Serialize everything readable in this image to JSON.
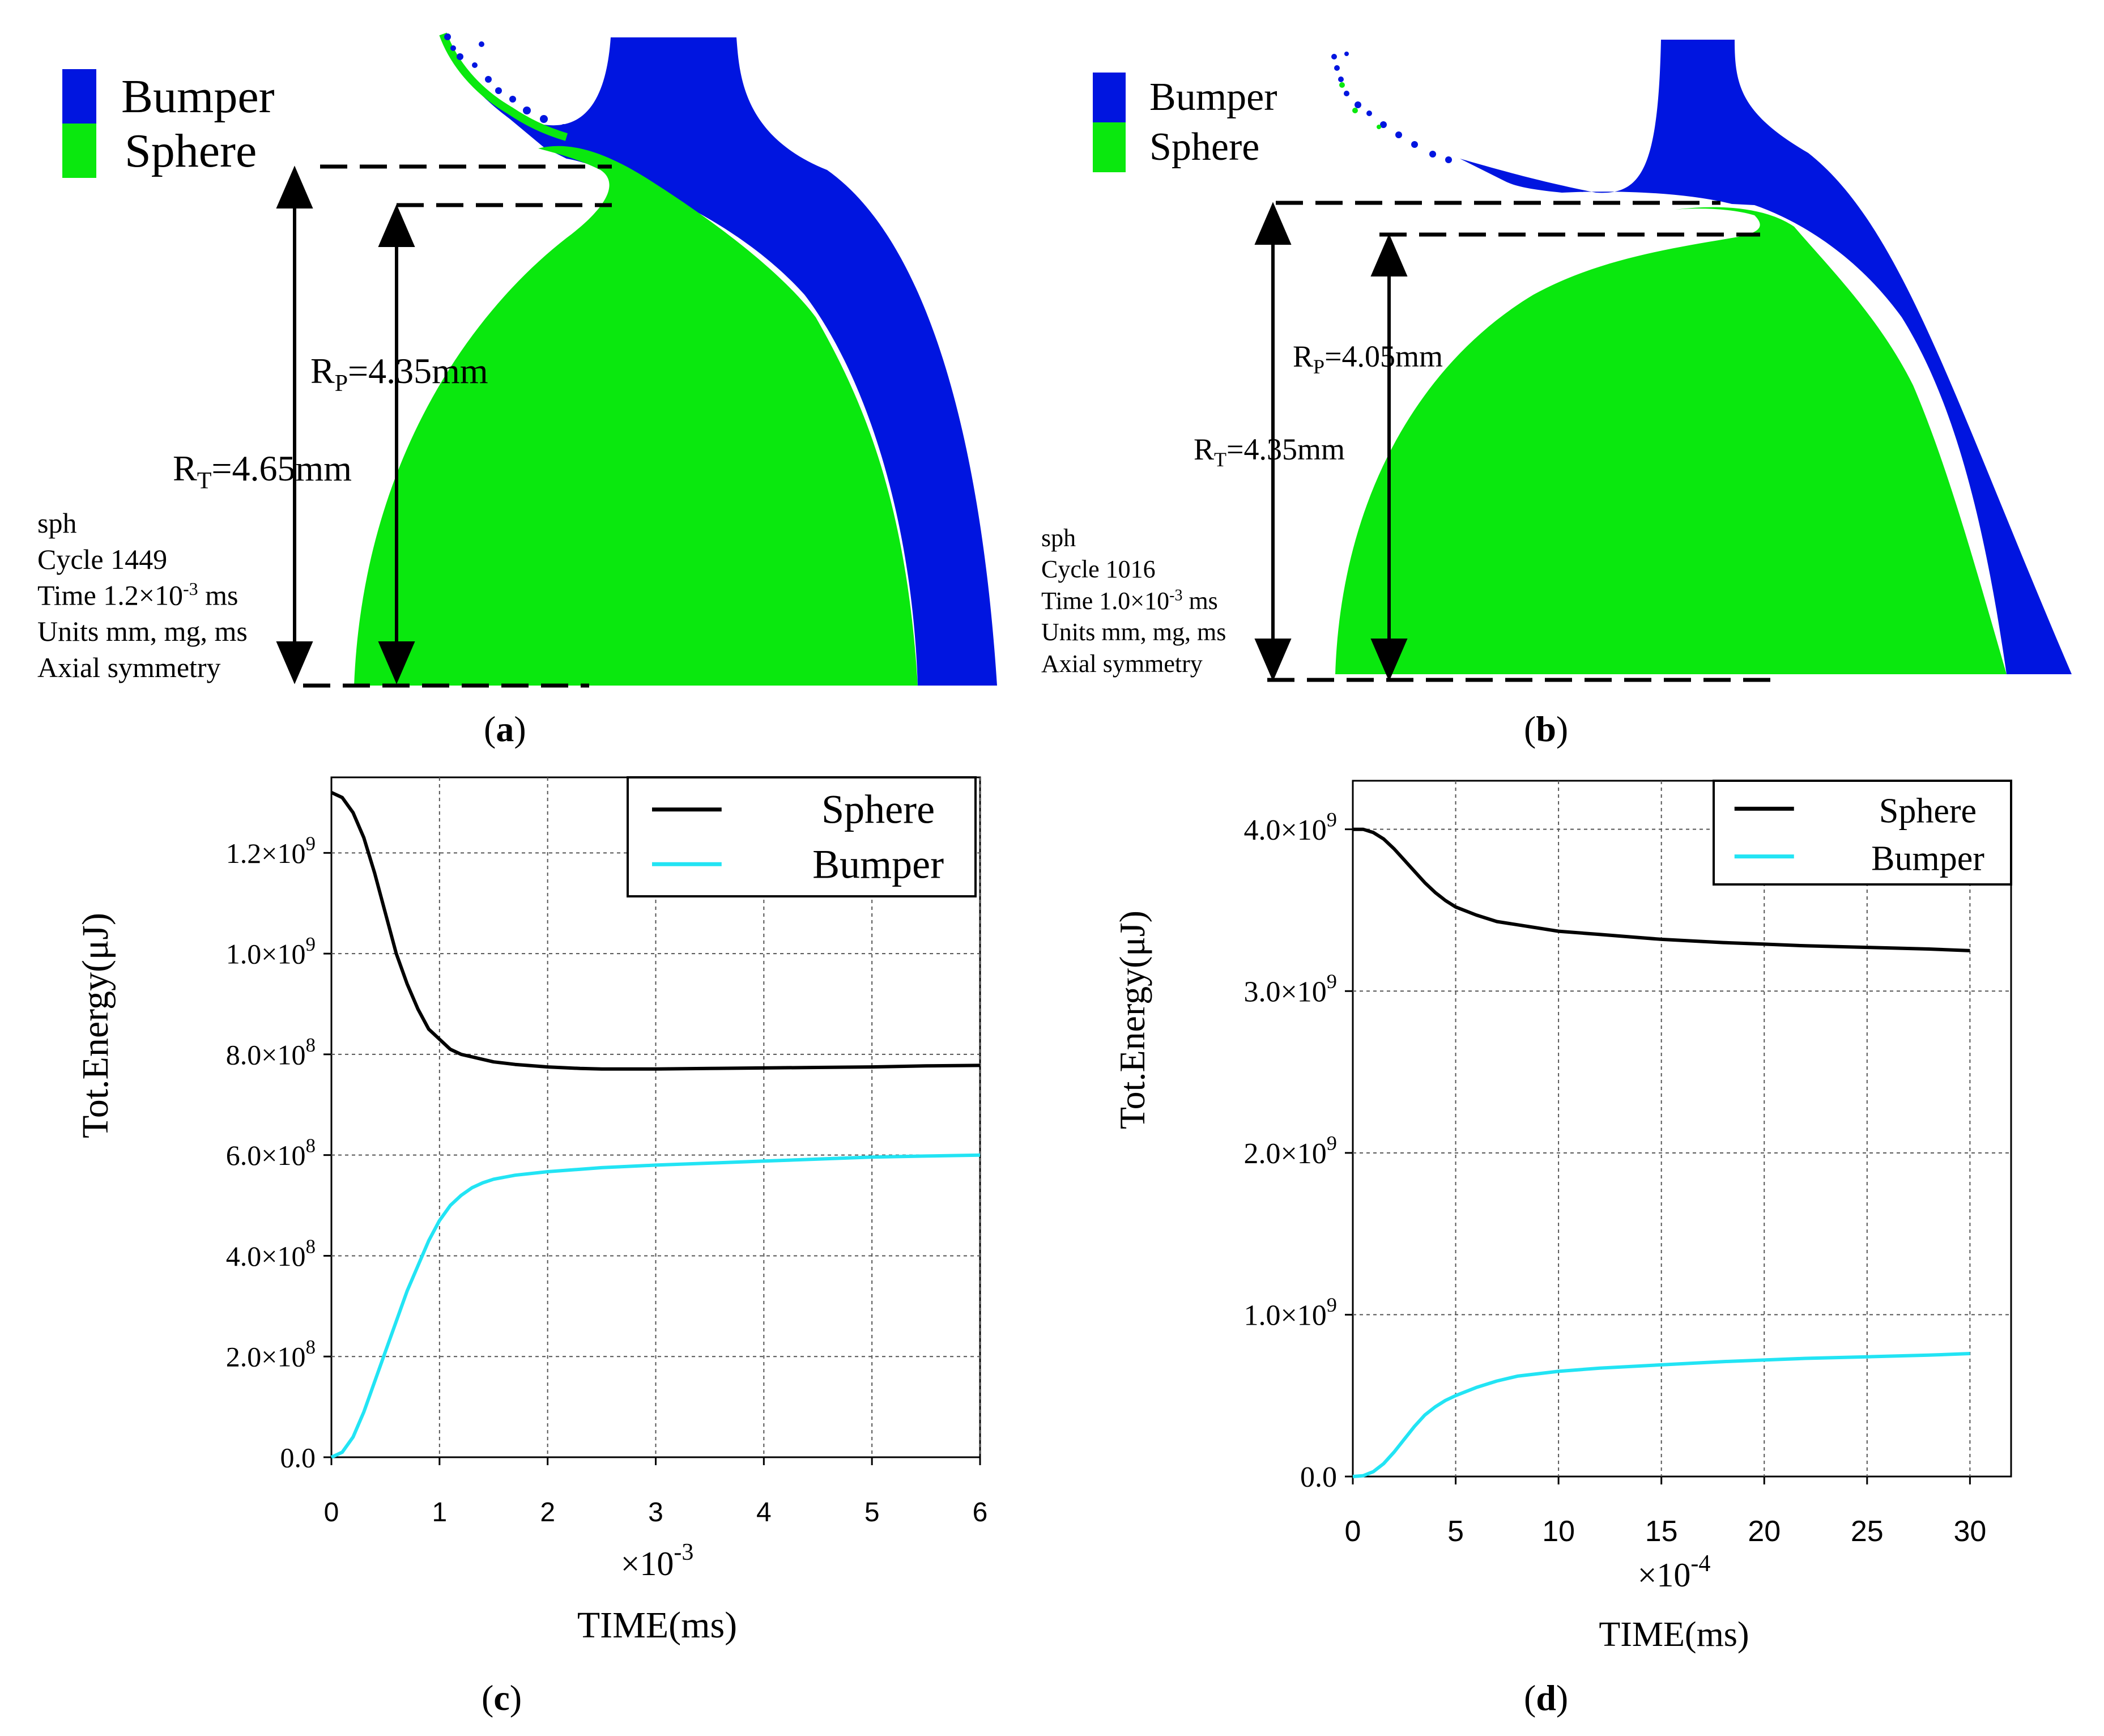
{
  "panel_a": {
    "legend": [
      {
        "label": "Bumper",
        "color": "#0015e0"
      },
      {
        "label": "Sphere",
        "color": "#0ae80e"
      }
    ],
    "rp_label": "R",
    "rp_sub": "P",
    "rp_value": "=4.35mm",
    "rt_label": "R",
    "rt_sub": "T",
    "rt_value": "=4.65mm",
    "info": {
      "line1": "sph",
      "line2": "Cycle 1449",
      "line3_pre": "Time 1.2×10",
      "line3_exp": "-3",
      "line3_post": " ms",
      "line4": "Units mm, mg, ms",
      "line5": "Axial symmetry"
    },
    "caption_letter": "a"
  },
  "panel_b": {
    "legend": [
      {
        "label": "Bumper",
        "color": "#0015e0"
      },
      {
        "label": "Sphere",
        "color": "#0ae80e"
      }
    ],
    "rp_label": "R",
    "rp_sub": "P",
    "rp_value": "=4.05mm",
    "rt_label": "R",
    "rt_sub": "T",
    "rt_value": "=4.35mm",
    "info": {
      "line1": "sph",
      "line2": "Cycle 1016",
      "line3_pre": "Time 1.0×10",
      "line3_exp": "-3",
      "line3_post": " ms",
      "line4": "Units mm, mg, ms",
      "line5": "Axial symmetry"
    },
    "caption_letter": "b"
  },
  "panel_c": {
    "caption_letter": "c"
  },
  "panel_d": {
    "caption_letter": "d"
  },
  "colors": {
    "sphere": "#000000",
    "bumper": "#22e4f4",
    "sim_bumper": "#0015e0",
    "sim_sphere": "#0ae80e"
  },
  "chart_data": [
    {
      "id": "c",
      "type": "line",
      "ylabel": "Tot.Energy(μJ)",
      "xlabel": "TIME(ms)",
      "x_multiplier_base": "×10",
      "x_multiplier_exp": "-3",
      "xlim": [
        0,
        6
      ],
      "ylim": [
        0,
        1350000000.0
      ],
      "x_ticks": [
        0,
        1,
        2,
        3,
        4,
        5,
        6
      ],
      "x_tick_labels": [
        "0",
        "1",
        "2",
        "3",
        "4",
        "5",
        "6"
      ],
      "y_ticks": [
        0,
        200000000.0,
        400000000.0,
        600000000.0,
        800000000.0,
        1000000000.0,
        1200000000.0
      ],
      "y_tick_labels": [
        {
          "base": "0.0",
          "exp": ""
        },
        {
          "base": "2.0×10",
          "exp": "8"
        },
        {
          "base": "4.0×10",
          "exp": "8"
        },
        {
          "base": "6.0×10",
          "exp": "8"
        },
        {
          "base": "8.0×10",
          "exp": "8"
        },
        {
          "base": "1.0×10",
          "exp": "9"
        },
        {
          "base": "1.2×10",
          "exp": "9"
        }
      ],
      "grid": true,
      "legend_position": "top-right",
      "series": [
        {
          "name": "Sphere",
          "color": "#000000",
          "x": [
            0,
            0.1,
            0.2,
            0.3,
            0.4,
            0.5,
            0.6,
            0.7,
            0.8,
            0.9,
            1.0,
            1.1,
            1.2,
            1.3,
            1.4,
            1.5,
            1.7,
            2.0,
            2.3,
            2.5,
            3.0,
            3.5,
            4.0,
            4.5,
            5.0,
            5.5,
            6.0
          ],
          "values": [
            1320000000.0,
            1310000000.0,
            1280000000.0,
            1230000000.0,
            1160000000.0,
            1080000000.0,
            1000000000.0,
            940000000.0,
            890000000.0,
            850000000.0,
            830000000.0,
            810000000.0,
            800000000.0,
            795000000.0,
            790000000.0,
            785000000.0,
            780000000.0,
            775000000.0,
            772000000.0,
            771000000.0,
            771000000.0,
            772000000.0,
            773000000.0,
            774000000.0,
            775000000.0,
            777000000.0,
            778000000.0
          ]
        },
        {
          "name": "Bumper",
          "color": "#22e4f4",
          "x": [
            0,
            0.1,
            0.2,
            0.3,
            0.4,
            0.5,
            0.6,
            0.7,
            0.8,
            0.9,
            1.0,
            1.1,
            1.2,
            1.3,
            1.4,
            1.5,
            1.7,
            2.0,
            2.5,
            3.0,
            3.5,
            4.0,
            4.5,
            5.0,
            5.5,
            6.0
          ],
          "values": [
            0,
            10000000.0,
            40000000.0,
            90000000.0,
            150000000.0,
            210000000.0,
            270000000.0,
            330000000.0,
            380000000.0,
            430000000.0,
            470000000.0,
            500000000.0,
            520000000.0,
            535000000.0,
            545000000.0,
            552000000.0,
            560000000.0,
            567000000.0,
            575000000.0,
            580000000.0,
            584000000.0,
            588000000.0,
            592000000.0,
            596000000.0,
            598000000.0,
            600000000.0
          ]
        }
      ]
    },
    {
      "id": "d",
      "type": "line",
      "ylabel": "Tot.Energy(μJ)",
      "xlabel": "TIME(ms)",
      "x_multiplier_base": "×10",
      "x_multiplier_exp": "-4",
      "xlim": [
        0,
        32
      ],
      "ylim": [
        0,
        4300000000.0
      ],
      "x_ticks": [
        0,
        5,
        10,
        15,
        20,
        25,
        30
      ],
      "x_tick_labels": [
        "0",
        "5",
        "10",
        "15",
        "20",
        "25",
        "30"
      ],
      "y_ticks": [
        0,
        1000000000.0,
        2000000000.0,
        3000000000.0,
        4000000000.0
      ],
      "y_tick_labels": [
        {
          "base": "0.0",
          "exp": ""
        },
        {
          "base": "1.0×10",
          "exp": "9"
        },
        {
          "base": "2.0×10",
          "exp": "9"
        },
        {
          "base": "3.0×10",
          "exp": "9"
        },
        {
          "base": "4.0×10",
          "exp": "9"
        }
      ],
      "grid": true,
      "legend_position": "top-right",
      "series": [
        {
          "name": "Sphere",
          "color": "#000000",
          "x": [
            0,
            0.5,
            1,
            1.5,
            2,
            2.5,
            3,
            3.5,
            4,
            4.5,
            5,
            6,
            7,
            8,
            10,
            12,
            15,
            18,
            20,
            22,
            25,
            28,
            30
          ],
          "values": [
            4000000000.0,
            4000000000.0,
            3980000000.0,
            3940000000.0,
            3880000000.0,
            3810000000.0,
            3740000000.0,
            3670000000.0,
            3610000000.0,
            3560000000.0,
            3520000000.0,
            3470000000.0,
            3430000000.0,
            3410000000.0,
            3370000000.0,
            3350000000.0,
            3320000000.0,
            3300000000.0,
            3290000000.0,
            3280000000.0,
            3270000000.0,
            3260000000.0,
            3250000000.0
          ]
        },
        {
          "name": "Bumper",
          "color": "#22e4f4",
          "x": [
            0,
            0.5,
            1,
            1.5,
            2,
            2.5,
            3,
            3.5,
            4,
            4.5,
            5,
            6,
            7,
            8,
            10,
            12,
            15,
            18,
            20,
            22,
            25,
            28,
            30
          ],
          "values": [
            0,
            5000000.0,
            30000000.0,
            80000000.0,
            150000000.0,
            230000000.0,
            310000000.0,
            380000000.0,
            430000000.0,
            470000000.0,
            500000000.0,
            550000000.0,
            590000000.0,
            620000000.0,
            650000000.0,
            670000000.0,
            690000000.0,
            710000000.0,
            720000000.0,
            730000000.0,
            740000000.0,
            750000000.0,
            760000000.0
          ]
        }
      ]
    }
  ]
}
